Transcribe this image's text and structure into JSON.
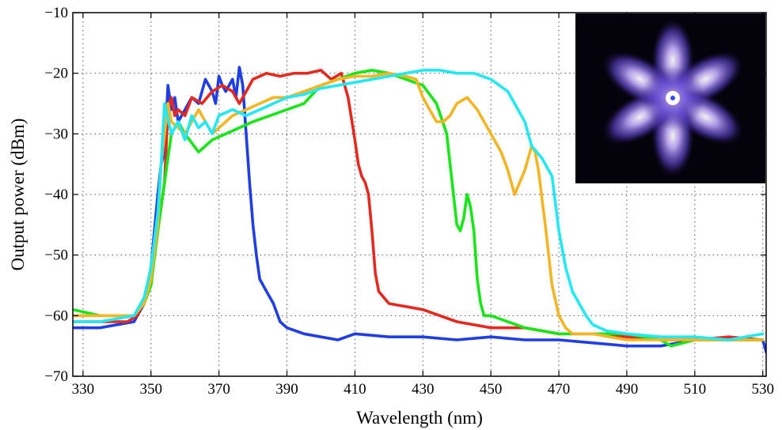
{
  "chart_data": {
    "type": "line",
    "xlabel": "Wavelength (nm)",
    "ylabel": "Output power (dBm)",
    "xlim": [
      327,
      531
    ],
    "ylim": [
      -70,
      -10
    ],
    "x_ticks": [
      330,
      350,
      370,
      390,
      410,
      430,
      450,
      470,
      490,
      510,
      530
    ],
    "y_ticks": [
      -70,
      -60,
      -50,
      -40,
      -30,
      -20,
      -10
    ],
    "grid": true,
    "legend": "none",
    "inset": "mode-profile-image-top-right",
    "series": [
      {
        "color": "#1f3ee6",
        "x": [
          327,
          335,
          340,
          345,
          348,
          350,
          352,
          353,
          354,
          355,
          356,
          357,
          358,
          360,
          362,
          364,
          366,
          368,
          369,
          370,
          371,
          372,
          374,
          375,
          376,
          377,
          378,
          379,
          380,
          381,
          382,
          384,
          386,
          388,
          390,
          395,
          400,
          405,
          410,
          420,
          430,
          440,
          450,
          460,
          470,
          480,
          490,
          500,
          510,
          520,
          530,
          531
        ],
        "y": [
          -62,
          -62,
          -61.5,
          -61,
          -58,
          -52,
          -40,
          -35,
          -33,
          -22,
          -26,
          -24,
          -28,
          -26,
          -24,
          -25,
          -21,
          -23,
          -25,
          -20.5,
          -22,
          -23,
          -21,
          -24,
          -19,
          -22,
          -30,
          -38,
          -45,
          -50,
          -54,
          -56,
          -58,
          -61,
          -62,
          -63,
          -63.5,
          -64,
          -63,
          -63.5,
          -63.5,
          -64,
          -63.5,
          -64,
          -64,
          -64.5,
          -65,
          -65,
          -64,
          -64,
          -64,
          -66
        ]
      },
      {
        "color": "#e6291f",
        "x": [
          327,
          335,
          343,
          346,
          349,
          351,
          353,
          354,
          355,
          356,
          357,
          358,
          360,
          362,
          365,
          368,
          371,
          374,
          376,
          378,
          380,
          384,
          388,
          392,
          396,
          400,
          403,
          406,
          408,
          410,
          411,
          412,
          413,
          414,
          415,
          416,
          417,
          420,
          430,
          440,
          450,
          460,
          470,
          480,
          490,
          500,
          510,
          520,
          530
        ],
        "y": [
          -61,
          -61,
          -61,
          -60,
          -56,
          -50,
          -42,
          -38,
          -26,
          -24,
          -27,
          -26,
          -27,
          -24,
          -25,
          -23,
          -22,
          -23,
          -25,
          -23,
          -21,
          -20,
          -20.5,
          -20,
          -20,
          -19.5,
          -21,
          -20,
          -24,
          -31,
          -35,
          -37,
          -38,
          -40,
          -46,
          -53,
          -56,
          -58,
          -59,
          -61,
          -62,
          -62,
          -63,
          -63,
          -63.5,
          -64,
          -64,
          -63.5,
          -64
        ]
      },
      {
        "color": "#19e619",
        "x": [
          327,
          335,
          340,
          345,
          348,
          350,
          352,
          354,
          356,
          358,
          360,
          364,
          368,
          372,
          376,
          380,
          385,
          390,
          395,
          400,
          405,
          410,
          415,
          420,
          425,
          430,
          434,
          437,
          439,
          440,
          441,
          442,
          443,
          444,
          445,
          446,
          447,
          448,
          450,
          455,
          460,
          470,
          480,
          490,
          500,
          503,
          510,
          520,
          530
        ],
        "y": [
          -59,
          -60,
          -60,
          -60,
          -58,
          -55,
          -46,
          -38,
          -30,
          -28,
          -30,
          -33,
          -31,
          -30,
          -29,
          -28,
          -27,
          -26,
          -25,
          -22,
          -21,
          -20,
          -19.5,
          -20,
          -21,
          -22,
          -25,
          -30,
          -40,
          -45,
          -46,
          -44,
          -40,
          -42,
          -46,
          -54,
          -58,
          -60,
          -60,
          -61,
          -62,
          -63,
          -63,
          -63,
          -64,
          -65,
          -64,
          -64,
          -64
        ]
      },
      {
        "color": "#f5b522",
        "x": [
          327,
          335,
          340,
          345,
          348,
          350,
          352,
          353,
          354,
          355,
          356,
          358,
          360,
          362,
          364,
          366,
          368,
          370,
          374,
          378,
          382,
          386,
          390,
          395,
          400,
          405,
          410,
          415,
          420,
          425,
          428,
          430,
          432,
          434,
          436,
          438,
          440,
          443,
          446,
          450,
          453,
          455,
          457,
          460,
          462,
          463,
          464,
          466,
          468,
          470,
          472,
          474,
          480,
          490,
          500,
          510,
          520,
          530
        ],
        "y": [
          -60,
          -60,
          -60,
          -60,
          -58,
          -54,
          -45,
          -35,
          -30,
          -25,
          -28,
          -29,
          -30,
          -28,
          -26,
          -28,
          -30,
          -29,
          -27,
          -26,
          -25,
          -24,
          -24,
          -23,
          -22,
          -21,
          -20.5,
          -20.5,
          -20,
          -20.5,
          -21,
          -24,
          -26,
          -28,
          -28,
          -27,
          -25,
          -24,
          -26,
          -30,
          -33,
          -36,
          -40,
          -36,
          -32,
          -33,
          -36,
          -45,
          -55,
          -60,
          -62,
          -63,
          -63,
          -64,
          -64,
          -64,
          -64,
          -64
        ]
      },
      {
        "color": "#22e8f2",
        "x": [
          327,
          335,
          340,
          345,
          348,
          350,
          352,
          353,
          354,
          356,
          358,
          360,
          362,
          364,
          366,
          368,
          370,
          374,
          378,
          382,
          386,
          390,
          395,
          400,
          405,
          410,
          415,
          420,
          425,
          430,
          435,
          440,
          445,
          450,
          455,
          460,
          462,
          465,
          468,
          470,
          472,
          474,
          476,
          478,
          480,
          484,
          490,
          500,
          510,
          520,
          530
        ],
        "y": [
          -61,
          -61,
          -60.5,
          -60,
          -57,
          -52,
          -43,
          -35,
          -25,
          -30,
          -28,
          -31,
          -27,
          -29,
          -28,
          -30,
          -27,
          -26,
          -27,
          -26,
          -25,
          -24,
          -23.5,
          -22.5,
          -22,
          -21.5,
          -21,
          -20.5,
          -20,
          -19.5,
          -19.5,
          -20,
          -20,
          -21,
          -23,
          -28,
          -32,
          -34,
          -37,
          -46,
          -52,
          -56,
          -58,
          -60,
          -61.5,
          -62.5,
          -63,
          -63.5,
          -63.5,
          -64,
          -63
        ]
      }
    ]
  }
}
